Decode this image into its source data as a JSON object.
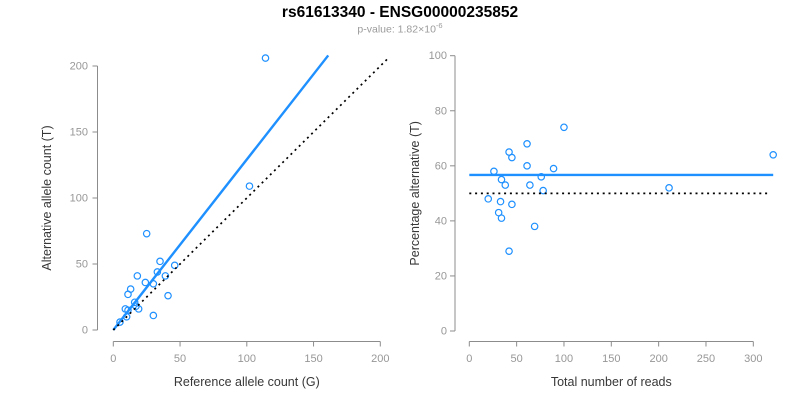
{
  "header": {
    "title": "rs61613340 - ENSG00000235852",
    "subtitle_prefix": "p-value: 1.82×10",
    "subtitle_exponent": "-6"
  },
  "colors": {
    "accent": "#1E90FF",
    "dotted_line": "#000000",
    "axis": "#8c8c8c",
    "tick_label": "#979797",
    "axis_title": "#383838",
    "subtitle": "#9b9b9b"
  },
  "chart_data": [
    {
      "name": "allele-count-scatter",
      "type": "scatter",
      "xlabel": "Reference allele count (G)",
      "ylabel": "Alternative allele count (T)",
      "xlim": [
        0,
        200
      ],
      "ylim": [
        0,
        200
      ],
      "xticks": [
        0,
        50,
        100,
        150,
        200
      ],
      "yticks": [
        0,
        50,
        100,
        150,
        200
      ],
      "grid": false,
      "legend": "none",
      "points": [
        [
          114,
          206
        ],
        [
          102,
          109
        ],
        [
          25,
          73
        ],
        [
          35,
          52
        ],
        [
          46,
          49
        ],
        [
          33,
          44
        ],
        [
          39,
          41
        ],
        [
          18,
          41
        ],
        [
          24,
          36
        ],
        [
          30,
          35
        ],
        [
          13,
          31
        ],
        [
          11,
          27
        ],
        [
          41,
          26
        ],
        [
          16,
          21
        ],
        [
          17,
          18
        ],
        [
          19,
          16
        ],
        [
          9,
          16
        ],
        [
          11,
          15
        ],
        [
          30,
          11
        ],
        [
          10,
          10
        ],
        [
          5,
          6
        ]
      ],
      "lines": [
        {
          "name": "regression-line",
          "style": "solid",
          "color_key": "accent",
          "points": [
            [
              0,
              0
            ],
            [
              161,
              208
            ]
          ]
        },
        {
          "name": "identity-line",
          "style": "dotted",
          "color_key": "dotted_line",
          "points": [
            [
              0,
              0
            ],
            [
              206,
              206
            ]
          ]
        }
      ]
    },
    {
      "name": "percentage-scatter",
      "type": "scatter",
      "xlabel": "Total number of reads",
      "ylabel": "Percentage alternative (T)",
      "xlim": [
        0,
        321
      ],
      "ylim": [
        0,
        100
      ],
      "xticks": [
        0,
        50,
        100,
        150,
        200,
        250,
        300
      ],
      "yticks": [
        0,
        20,
        40,
        60,
        80,
        100
      ],
      "grid": false,
      "legend": "none",
      "points": [
        [
          26,
          58
        ],
        [
          61,
          68
        ],
        [
          42,
          65
        ],
        [
          45,
          63
        ],
        [
          100,
          74
        ],
        [
          61,
          60
        ],
        [
          89,
          59
        ],
        [
          76,
          56
        ],
        [
          34,
          55
        ],
        [
          64,
          53
        ],
        [
          38,
          53
        ],
        [
          78,
          51
        ],
        [
          211,
          52
        ],
        [
          321,
          64
        ],
        [
          20,
          48
        ],
        [
          33,
          47
        ],
        [
          45,
          46
        ],
        [
          31,
          43
        ],
        [
          34,
          41
        ],
        [
          69,
          38
        ],
        [
          42,
          29
        ]
      ],
      "lines": [
        {
          "name": "mean-percentage-line",
          "style": "solid",
          "color_key": "accent",
          "points": [
            [
              0,
              56.7
            ],
            [
              321,
              56.7
            ]
          ]
        },
        {
          "name": "expected-50-line",
          "style": "dotted",
          "color_key": "dotted_line",
          "points": [
            [
              0,
              50
            ],
            [
              316,
              50
            ]
          ]
        }
      ]
    }
  ]
}
